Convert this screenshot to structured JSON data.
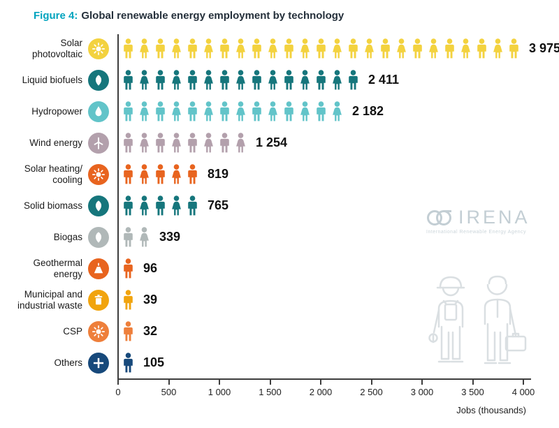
{
  "figure": {
    "label": "Figure 4:",
    "title": "Global renewable energy employment by technology"
  },
  "watermark": {
    "name": "IRENA",
    "subtitle": "International Renewable Energy Agency"
  },
  "chart_data": {
    "type": "bar",
    "subtype": "pictogram",
    "title": "Global renewable energy employment by technology",
    "xlabel": "Jobs (thousands)",
    "ylabel": "",
    "xlim": [
      0,
      4000
    ],
    "grid": false,
    "x_ticks": [
      0,
      500,
      1000,
      1500,
      2000,
      2500,
      3000,
      3500,
      4000
    ],
    "x_tick_labels": [
      "0",
      "500",
      "1 000",
      "1 500",
      "2 000",
      "2 500",
      "3 000",
      "3 500",
      "4 000"
    ],
    "categories": [
      {
        "label": "Solar\nphotovoltaic",
        "icon": "sun-icon",
        "color": "#F3D23F",
        "value": 3975,
        "value_label": "3 975"
      },
      {
        "label": "Liquid biofuels",
        "icon": "leaf-icon",
        "color": "#16767C",
        "value": 2411,
        "value_label": "2 411"
      },
      {
        "label": "Hydropower",
        "icon": "droplet-icon",
        "color": "#62C4C9",
        "value": 2182,
        "value_label": "2 182"
      },
      {
        "label": "Wind energy",
        "icon": "turbine-icon",
        "color": "#B3A0AC",
        "value": 1254,
        "value_label": "1 254"
      },
      {
        "label": "Solar heating/\ncooling",
        "icon": "sun-icon",
        "color": "#E8641F",
        "value": 819,
        "value_label": "819"
      },
      {
        "label": "Solid biomass",
        "icon": "leaf-icon",
        "color": "#16767C",
        "value": 765,
        "value_label": "765"
      },
      {
        "label": "Biogas",
        "icon": "leaf-icon",
        "color": "#B0B8B8",
        "value": 339,
        "value_label": "339"
      },
      {
        "label": "Geothermal\nenergy",
        "icon": "volcano-icon",
        "color": "#E8641F",
        "value": 96,
        "value_label": "96"
      },
      {
        "label": "Municipal and\nindustrial waste",
        "icon": "trash-icon",
        "color": "#F1A40E",
        "value": 39,
        "value_label": "39"
      },
      {
        "label": "CSP",
        "icon": "sun-icon",
        "color": "#EE7F3B",
        "value": 32,
        "value_label": "32"
      },
      {
        "label": "Others",
        "icon": "plus-icon",
        "color": "#17497B",
        "value": 105,
        "value_label": "105"
      }
    ]
  }
}
